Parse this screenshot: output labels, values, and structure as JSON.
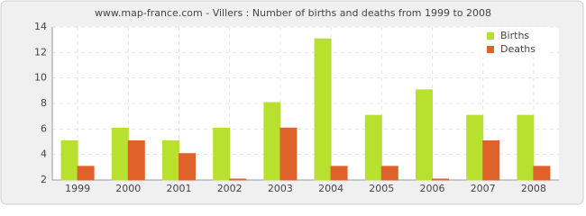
{
  "chart_data": {
    "type": "bar",
    "title": "www.map-france.com - Villers : Number of births and deaths from 1999 to 2008",
    "categories": [
      "1999",
      "2000",
      "2001",
      "2002",
      "2003",
      "2004",
      "2005",
      "2006",
      "2007",
      "2008"
    ],
    "series": [
      {
        "name": "Births",
        "color": "#b8e02e",
        "values": [
          5,
          6,
          5,
          6,
          8,
          13,
          7,
          9,
          7,
          7
        ]
      },
      {
        "name": "Deaths",
        "color": "#e0622b",
        "values": [
          3,
          5,
          4,
          2,
          6,
          3,
          3,
          2,
          5,
          3
        ]
      }
    ],
    "ylim": [
      2,
      14
    ],
    "yticks": [
      2,
      4,
      6,
      8,
      10,
      12,
      14
    ],
    "grid": true,
    "legend": "top-right"
  }
}
